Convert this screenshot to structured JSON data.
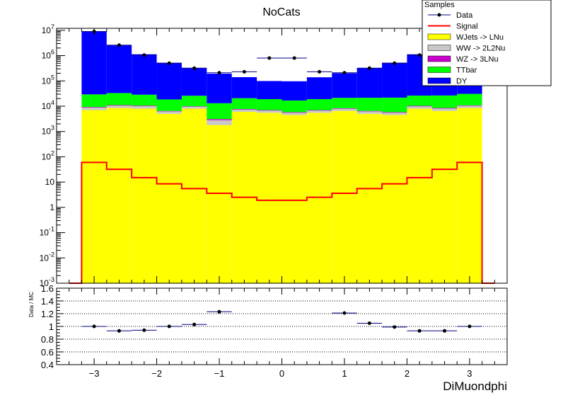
{
  "chart_data": [
    {
      "type": "bar",
      "title": "NoCats",
      "yscale": "log",
      "ylim": [
        0.001,
        12000000
      ],
      "xlim": [
        -3.6,
        3.6
      ],
      "ytick_labels": [
        "10^-3",
        "10^-2",
        "10^-1",
        "1",
        "10",
        "10^2",
        "10^3",
        "10^4",
        "10^5",
        "10^6",
        "10^7"
      ],
      "legend": {
        "title": "Samples",
        "placement": "top-right",
        "entries": [
          "Data",
          "Signal",
          "WJets -> LNu",
          "WW -> 2L2Nu",
          "WZ -> 3LNu",
          "TTbar",
          "DY"
        ]
      },
      "bin_edges": [
        -3.2,
        -2.8,
        -2.4,
        -2.0,
        -1.6,
        -1.2,
        -0.8,
        -0.4,
        0.0,
        0.4,
        0.8,
        1.2,
        1.6,
        2.0,
        2.4,
        2.8,
        3.2
      ],
      "stack_series": [
        {
          "name": "WJets -> LNu",
          "color": "#ffff00",
          "values": [
            7000,
            8500,
            8000,
            5000,
            8000,
            1800,
            6000,
            5500,
            4500,
            5500,
            6500,
            5000,
            4500,
            8000,
            6500,
            8500
          ]
        },
        {
          "name": "WW -> 2L2Nu",
          "color": "#c8c8c8",
          "values": [
            1800,
            2000,
            2000,
            1200,
            1500,
            1000,
            1300,
            1200,
            1000,
            1200,
            1400,
            1200,
            1000,
            1800,
            1600,
            1800
          ]
        },
        {
          "name": "WZ -> 3LNu",
          "color": "#cc00cc",
          "values": [
            500,
            500,
            500,
            300,
            400,
            300,
            400,
            300,
            300,
            300,
            400,
            300,
            300,
            500,
            400,
            500
          ]
        },
        {
          "name": "TTbar",
          "color": "#00ff00",
          "values": [
            20000,
            22000,
            18000,
            12000,
            16000,
            10000,
            13000,
            12000,
            11000,
            12000,
            13000,
            15000,
            16000,
            16000,
            18000,
            20000
          ]
        },
        {
          "name": "DY",
          "color": "#0000ff",
          "values": [
            9000000,
            2500000,
            1100000,
            500000,
            300000,
            180000,
            120000,
            80000,
            80000,
            120000,
            180000,
            300000,
            500000,
            1100000,
            2500000,
            9000000
          ]
        }
      ],
      "signal": {
        "name": "Signal",
        "color": "#ff0000",
        "values": [
          60,
          32,
          15,
          8.5,
          5.5,
          3.6,
          2.5,
          1.9,
          1.9,
          2.5,
          3.6,
          5.5,
          8.5,
          15,
          32,
          60
        ]
      },
      "data_series": {
        "name": "Data",
        "color": "#000080",
        "x": [
          -3.0,
          -2.6,
          -2.2,
          -1.8,
          -1.4,
          -1.0,
          -0.6,
          -0.2,
          0.2,
          0.6,
          1.0,
          1.4,
          1.8,
          2.2,
          2.6,
          3.0
        ],
        "values": [
          9000000,
          2600000,
          1050000,
          500000,
          320000,
          210000,
          230000,
          800000,
          800000,
          230000,
          210000,
          320000,
          500000,
          1050000,
          2600000,
          9000000
        ]
      }
    },
    {
      "type": "scatter",
      "ylabel": "Data / MC",
      "xlabel": "DiMuondphi",
      "ylim": [
        0.4,
        1.6
      ],
      "yticks": [
        0.4,
        0.6,
        0.8,
        1.0,
        1.2,
        1.4,
        1.6
      ],
      "ytick_labels": [
        "0.4",
        "0.6",
        "0.8",
        "1",
        "1.2",
        "1.4",
        "1.6"
      ],
      "xticks": [
        -3,
        -2,
        -1,
        0,
        1,
        2,
        3
      ],
      "xtick_labels": [
        "−3",
        "−2",
        "−1",
        "0",
        "1",
        "2",
        "3"
      ],
      "grid": "horizontal dotted",
      "x": [
        -3.0,
        -2.6,
        -2.2,
        -1.8,
        -1.4,
        -1.0,
        1.0,
        1.4,
        1.8,
        2.2,
        2.6,
        3.0
      ],
      "values": [
        1.0,
        0.93,
        0.94,
        1.0,
        1.03,
        1.23,
        1.21,
        1.05,
        0.99,
        0.93,
        0.93,
        1.0
      ]
    }
  ]
}
